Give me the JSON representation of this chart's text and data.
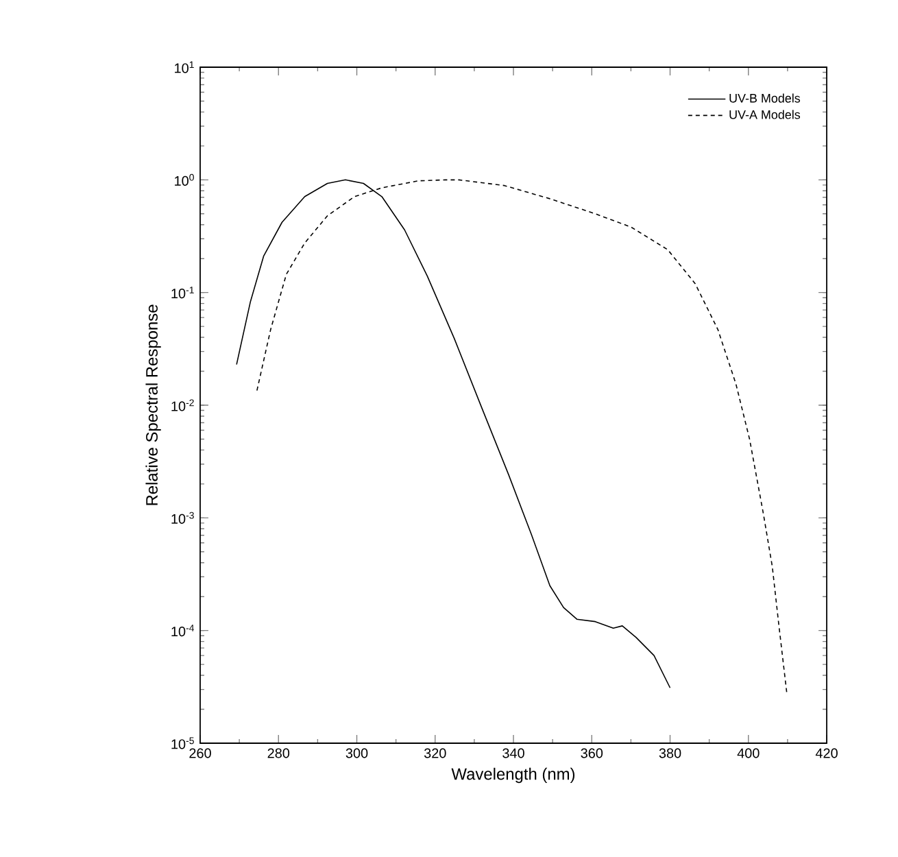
{
  "chart_data": {
    "type": "line",
    "xlabel": "Wavelength (nm)",
    "ylabel": "Relative Spectral Response",
    "log": "y",
    "legend": "top right",
    "grid": false,
    "xlim": [
      260,
      420
    ],
    "xticks": [
      260,
      280,
      300,
      320,
      340,
      360,
      380,
      400,
      420
    ],
    "ylim": [
      1e-05,
      10
    ],
    "yticks": [
      {
        "value": 1e-05,
        "label": "10$^{-5}$"
      },
      {
        "value": 0.0001,
        "label": "10$^{-4}$"
      },
      {
        "value": 0.001,
        "label": "10$^{-3}$"
      },
      {
        "value": 0.01,
        "label": "10$^{-2}$"
      },
      {
        "value": 0.1,
        "label": "10$^{-1}$"
      },
      {
        "value": 1,
        "label": "10$^{0}$"
      },
      {
        "value": 10,
        "label": "10$^{1}$"
      }
    ],
    "series": [
      {
        "name": "UV-B Models",
        "color": "#000000",
        "line_style": "solid",
        "x": [
          269.3,
          272.8,
          276.2,
          280.9,
          286.7,
          292.5,
          297.1,
          301.7,
          306.4,
          312.2,
          318,
          324.9,
          331.9,
          338.8,
          344.6,
          349.3,
          352.8,
          356.2,
          360.9,
          365.5,
          367.8,
          371.3,
          375.9,
          380
        ],
        "values": [
          0.023,
          0.082,
          0.21,
          0.42,
          0.71,
          0.93,
          1.0,
          0.93,
          0.71,
          0.36,
          0.14,
          0.039,
          0.0095,
          0.0024,
          0.00071,
          0.00025,
          0.00016,
          0.000126,
          0.00012,
          0.000105,
          0.00011,
          8.7e-05,
          6e-05,
          3.1e-05
        ]
      },
      {
        "name": "UV-A Models",
        "color": "#000000",
        "line_style": "dashed",
        "x": [
          274.5,
          278,
          282,
          286.7,
          292.5,
          299.4,
          306.4,
          315.7,
          322.6,
          326.1,
          337.7,
          349.3,
          360.9,
          370.1,
          379.4,
          386.4,
          392.2,
          396.8,
          400.3,
          403.8,
          406.1,
          407.8,
          409.8
        ],
        "values": [
          0.0135,
          0.047,
          0.145,
          0.275,
          0.48,
          0.71,
          0.85,
          0.98,
          1.0,
          1.0,
          0.89,
          0.68,
          0.5,
          0.38,
          0.24,
          0.12,
          0.047,
          0.0155,
          0.005,
          0.0011,
          0.00037,
          0.00011,
          2.8e-05
        ]
      }
    ]
  }
}
